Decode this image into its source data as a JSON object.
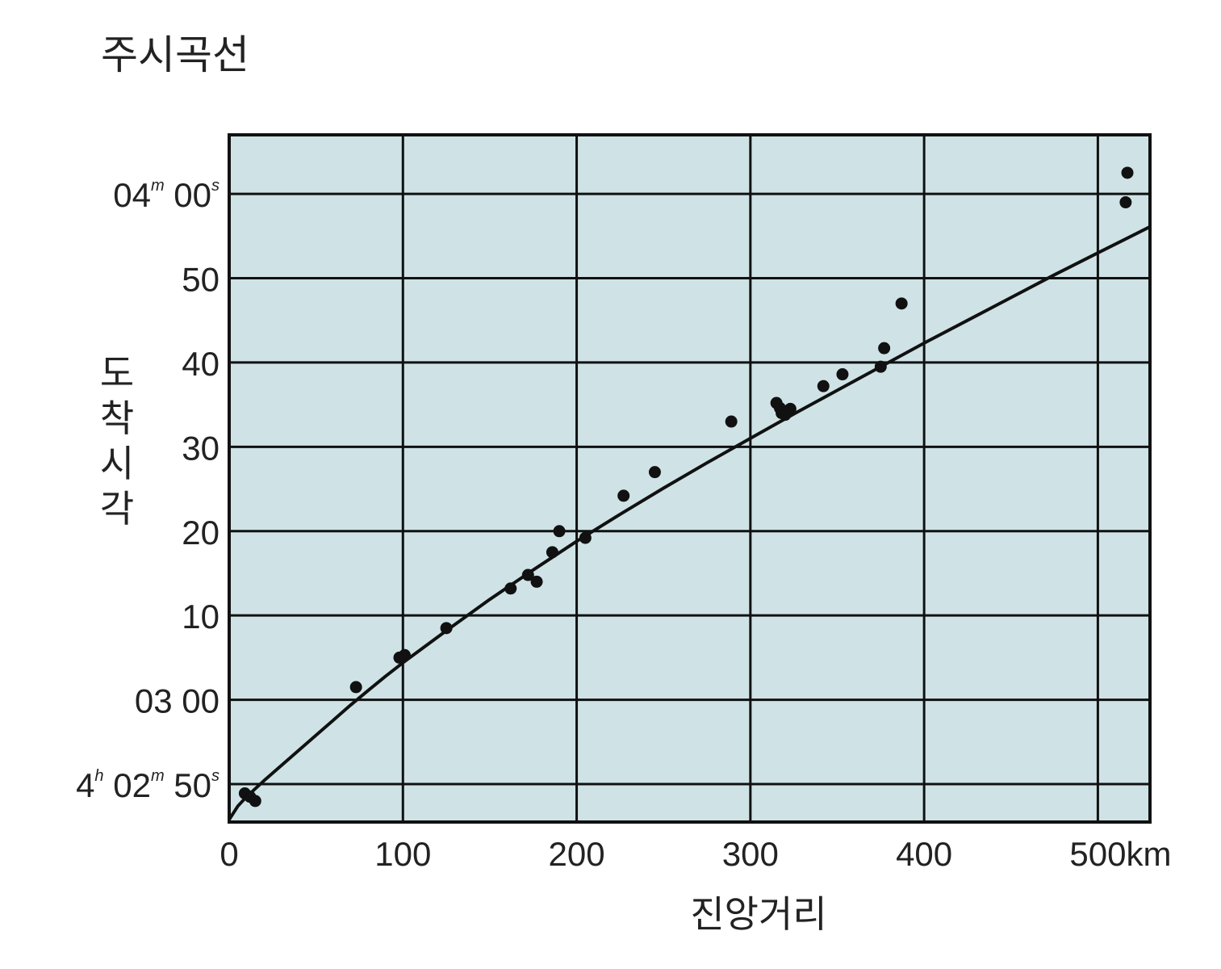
{
  "chart_data": {
    "type": "scatter",
    "title": "주시곡선",
    "xlabel": "진앙거리",
    "ylabel": "도착시각",
    "xlim": [
      0,
      530
    ],
    "ylim": [
      -4.5,
      77
    ],
    "x_ticks": [
      {
        "value": 0,
        "label": "0"
      },
      {
        "value": 100,
        "label": "100"
      },
      {
        "value": 200,
        "label": "200"
      },
      {
        "value": 300,
        "label": "300"
      },
      {
        "value": 400,
        "label": "400"
      },
      {
        "value": 500,
        "label": "500km"
      }
    ],
    "y_ticks": [
      {
        "value": 0,
        "parts": [
          {
            "t": "4"
          },
          {
            "t": "h",
            "sup": true
          },
          {
            "t": " 02"
          },
          {
            "t": "m",
            "sup": true
          },
          {
            "t": " 50"
          },
          {
            "t": "s",
            "sup": true
          }
        ]
      },
      {
        "value": 10,
        "parts": [
          {
            "t": "03 00"
          }
        ]
      },
      {
        "value": 20,
        "parts": [
          {
            "t": "10"
          }
        ]
      },
      {
        "value": 30,
        "parts": [
          {
            "t": "20"
          }
        ]
      },
      {
        "value": 40,
        "parts": [
          {
            "t": "30"
          }
        ]
      },
      {
        "value": 50,
        "parts": [
          {
            "t": "40"
          }
        ]
      },
      {
        "value": 60,
        "parts": [
          {
            "t": "50"
          }
        ]
      },
      {
        "value": 70,
        "parts": [
          {
            "t": "04"
          },
          {
            "t": "m",
            "sup": true
          },
          {
            "t": " 00"
          },
          {
            "t": "s",
            "sup": true
          }
        ]
      }
    ],
    "grid": true,
    "background_color": "#cfe3e6",
    "point_color": "#111111",
    "series": [
      {
        "kind": "points",
        "x": [
          9,
          12,
          15,
          73,
          98,
          101,
          125,
          162,
          172,
          177,
          186,
          190,
          205,
          227,
          245,
          289,
          315,
          317,
          318,
          320,
          323,
          342,
          353,
          375,
          377,
          387,
          516,
          517
        ],
        "y": [
          -1.1,
          -1.5,
          -2.0,
          11.5,
          15.0,
          15.3,
          18.5,
          23.2,
          24.8,
          24.0,
          27.5,
          30.0,
          29.2,
          34.2,
          37.0,
          43.0,
          45.2,
          44.6,
          44.0,
          43.8,
          44.5,
          47.2,
          48.6,
          49.5,
          51.7,
          57.0,
          69.0,
          72.5
        ]
      },
      {
        "kind": "line",
        "x": [
          0,
          5,
          10,
          20,
          30,
          40,
          50,
          60,
          70,
          80,
          90,
          100,
          125,
          150,
          175,
          200,
          225,
          250,
          275,
          300,
          325,
          350,
          375,
          400,
          425,
          450,
          475,
          500,
          530
        ],
        "y": [
          -4.2,
          -2.6,
          -1.5,
          0.4,
          2.2,
          4.0,
          5.8,
          7.6,
          9.4,
          11.1,
          12.8,
          14.4,
          18.2,
          21.9,
          25.4,
          28.8,
          32.0,
          35.1,
          38.1,
          41.0,
          43.9,
          46.7,
          49.5,
          52.3,
          55.0,
          57.7,
          60.4,
          63.0,
          66.1
        ]
      }
    ]
  }
}
